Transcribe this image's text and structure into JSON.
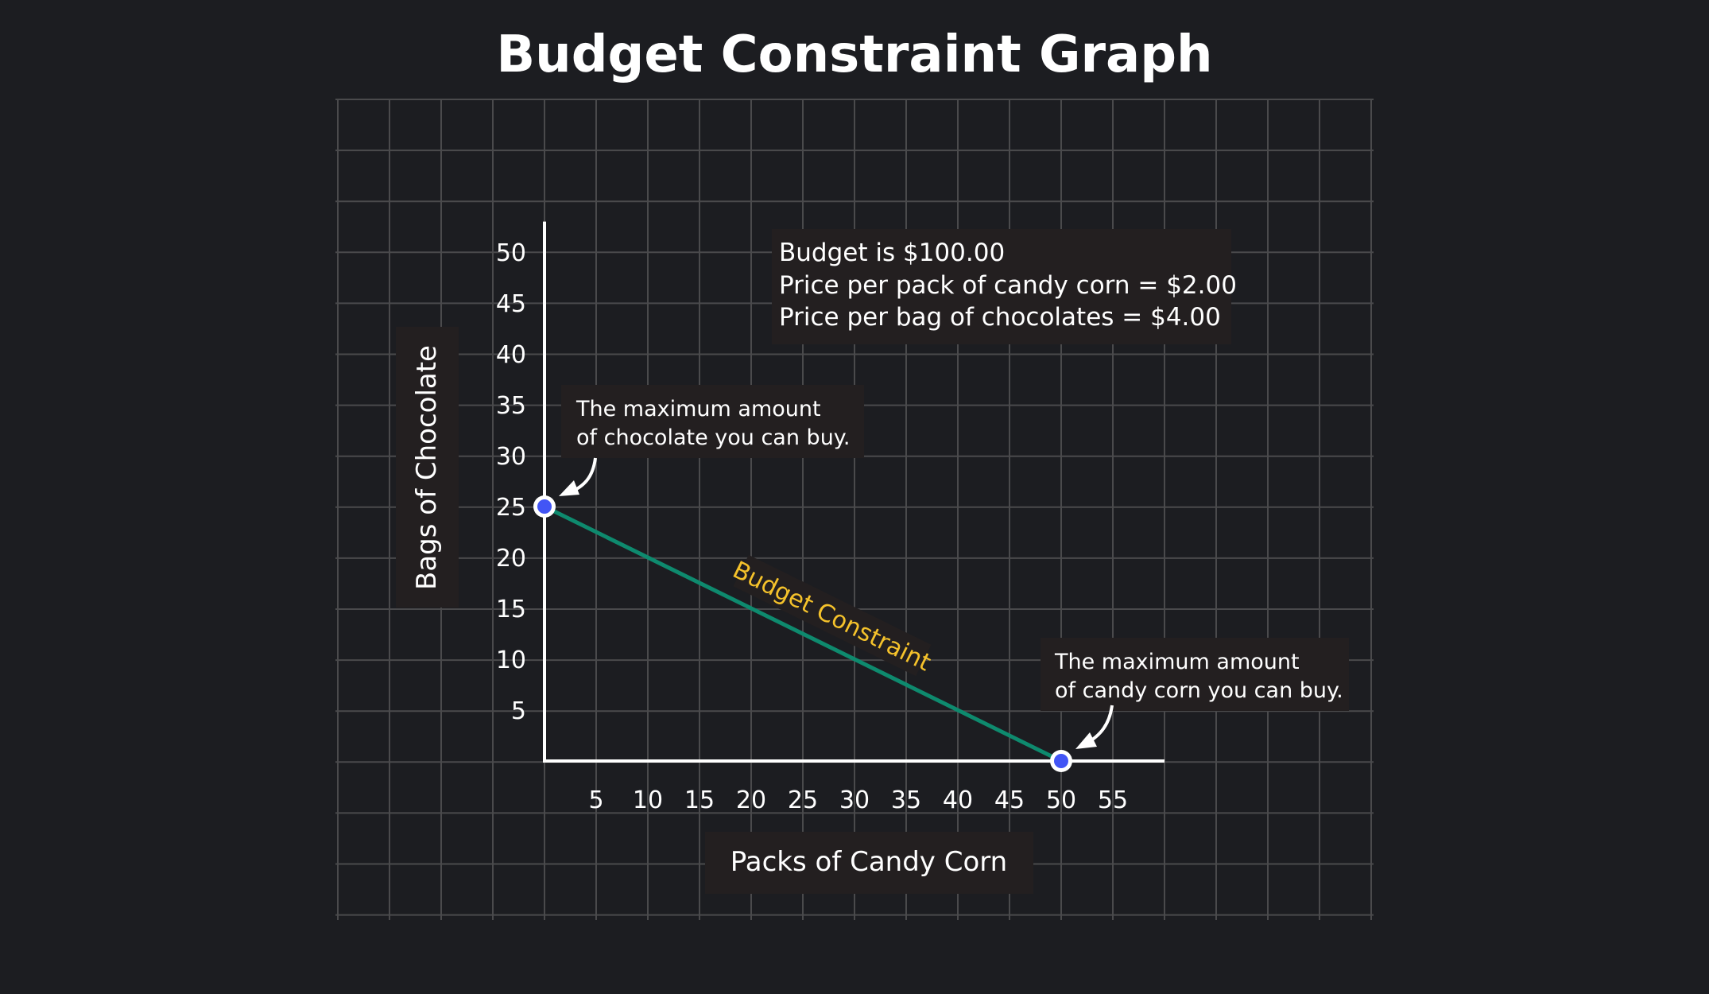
{
  "chart_data": {
    "type": "line",
    "title": "Budget Constraint Graph",
    "xlabel": "Packs of Candy Corn",
    "ylabel": "Bags of Chocolate",
    "xlim": [
      0,
      60
    ],
    "ylim": [
      0,
      53
    ],
    "x_ticks": [
      5,
      10,
      15,
      20,
      25,
      30,
      35,
      40,
      45,
      50,
      55
    ],
    "y_ticks": [
      5,
      10,
      15,
      20,
      25,
      30,
      35,
      40,
      45,
      50
    ],
    "grid": true,
    "series": [
      {
        "name": "Budget Constraint",
        "x": [
          0,
          50
        ],
        "y": [
          25,
          0
        ],
        "color": "#0e8a6e"
      }
    ],
    "points": [
      {
        "x": 0,
        "y": 25,
        "color": "#4255f5"
      },
      {
        "x": 50,
        "y": 0,
        "color": "#4255f5"
      }
    ],
    "series_label_color": "#f5c22b",
    "annotations": {
      "info": [
        "Budget is $100.00",
        "Price per pack of candy corn = $2.00",
        "Price per bag of chocolates = $4.00"
      ],
      "max_chocolate": [
        "The maximum amount",
        "of chocolate you can buy."
      ],
      "max_candy_corn": [
        "The maximum amount",
        "of candy corn you can buy."
      ]
    }
  }
}
